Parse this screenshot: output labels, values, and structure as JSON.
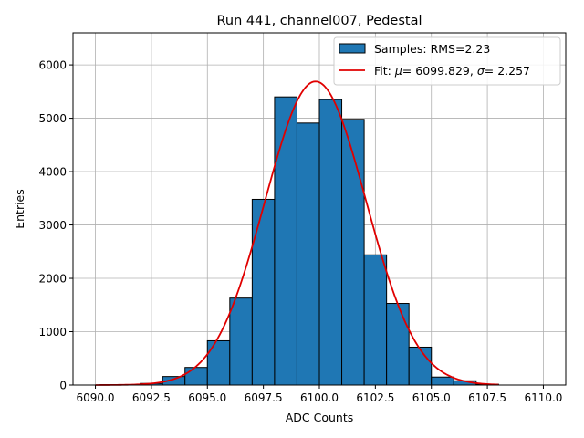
{
  "chart_data": {
    "type": "bar",
    "title": "Run 441, channel007, Pedestal",
    "xlabel": "ADC Counts",
    "ylabel": "Entries",
    "xlim": [
      6089.0,
      6111.0
    ],
    "ylim": [
      0,
      6600
    ],
    "grid": true,
    "legend_position": "top-right",
    "x_ticks": [
      6090.0,
      6092.5,
      6095.0,
      6097.5,
      6100.0,
      6102.5,
      6105.0,
      6107.5,
      6110.0
    ],
    "x_tick_labels": [
      "6090.0",
      "6092.5",
      "6095.0",
      "6097.5",
      "6100.0",
      "6102.5",
      "6105.0",
      "6107.5",
      "6110.0"
    ],
    "y_ticks": [
      0,
      1000,
      2000,
      3000,
      4000,
      5000,
      6000
    ],
    "y_tick_labels": [
      "0",
      "1000",
      "2000",
      "3000",
      "4000",
      "5000",
      "6000"
    ],
    "histogram": {
      "name": "Samples: RMS=2.23",
      "color": "#1f77b4",
      "edge_color": "#000000",
      "bins": [
        {
          "x0": 6092,
          "x1": 6093,
          "count": 30
        },
        {
          "x0": 6093,
          "x1": 6094,
          "count": 160
        },
        {
          "x0": 6094,
          "x1": 6095,
          "count": 330
        },
        {
          "x0": 6095,
          "x1": 6096,
          "count": 830
        },
        {
          "x0": 6096,
          "x1": 6097,
          "count": 1630
        },
        {
          "x0": 6097,
          "x1": 6098,
          "count": 3480
        },
        {
          "x0": 6098,
          "x1": 6099,
          "count": 5400
        },
        {
          "x0": 6099,
          "x1": 6100,
          "count": 4910
        },
        {
          "x0": 6100,
          "x1": 6101,
          "count": 5350
        },
        {
          "x0": 6101,
          "x1": 6102,
          "count": 4980
        },
        {
          "x0": 6102,
          "x1": 6103,
          "count": 2440
        },
        {
          "x0": 6103,
          "x1": 6104,
          "count": 1530
        },
        {
          "x0": 6104,
          "x1": 6105,
          "count": 710
        },
        {
          "x0": 6105,
          "x1": 6106,
          "count": 150
        },
        {
          "x0": 6106,
          "x1": 6107,
          "count": 80
        },
        {
          "x0": 6107,
          "x1": 6108,
          "count": 15
        }
      ]
    },
    "fit": {
      "label_prefix": "Fit: ",
      "mu_label": "μ",
      "mu_value": "= 6099.829, ",
      "sigma_label": "σ",
      "sigma_value": "= 2.257",
      "color": "#e00000",
      "mu": 6099.829,
      "sigma": 2.257,
      "peak": 5690,
      "x_range": [
        6090,
        6108
      ]
    }
  }
}
